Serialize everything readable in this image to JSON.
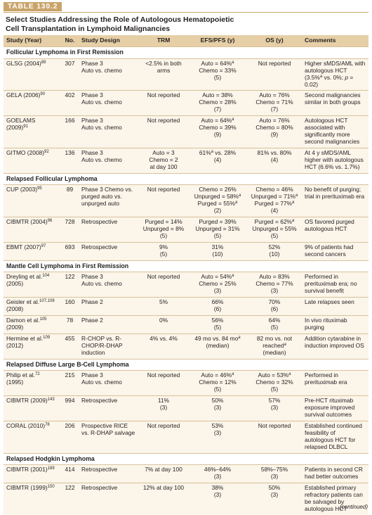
{
  "label": "TABLE 130.2",
  "title": "Select Studies Addressing the Role of Autologous Hematopoietic Cell Transplantation in Lymphoid Malignancies",
  "columns": [
    "Study (Year)",
    "No.",
    "Study Design",
    "TRM",
    "EFS/PFS (y)",
    "OS (y)",
    "Comments"
  ],
  "sections": [
    {
      "heading": "Follicular Lymphoma in First Remission",
      "rows": [
        [
          [
            [
              "GLSG (2004)",
              {
                "sup": "89"
              }
            ]
          ],
          [
            "307"
          ],
          [
            "Phase 3",
            "Auto vs. chemo"
          ],
          [
            "<2.5% in both arms"
          ],
          [
            [
              "Auto = 64%",
              {
                "sup": "a"
              }
            ],
            "Chemo = 33%",
            "(5)"
          ],
          [
            "Not reported"
          ],
          [
            [
              "Higher sMDS/AML with autologous HCT (3.5%",
              {
                "sup": "a"
              },
              " vs. 0%; ",
              {
                "i": "p"
              },
              " = 0.02)"
            ]
          ]
        ],
        [
          [
            [
              "GELA (2006)",
              {
                "sup": "90"
              }
            ]
          ],
          [
            "402"
          ],
          [
            "Phase 3",
            "Auto vs. chemo"
          ],
          [
            "Not reported"
          ],
          [
            "Auto = 38%",
            "Chemo = 28%",
            "(7)"
          ],
          [
            "Auto = 76%",
            "Chemo = 71%",
            "(7)"
          ],
          [
            "Second malignancies similar in both groups"
          ]
        ],
        [
          [
            [
              "GOELAMS (2009)",
              {
                "sup": "91"
              }
            ]
          ],
          [
            "166"
          ],
          [
            "Phase 3",
            "Auto vs. chemo"
          ],
          [
            "Not reported"
          ],
          [
            [
              "Auto = 64%",
              {
                "sup": "a"
              }
            ],
            "Chemo = 39%",
            "(9)"
          ],
          [
            "Auto = 76%",
            "Chemo = 80%",
            "(9)"
          ],
          [
            "Autologous HCT associated with significantly more second malignancies"
          ]
        ],
        [
          [
            [
              "GITMO (2008)",
              {
                "sup": "92"
              }
            ]
          ],
          [
            "136"
          ],
          [
            "Phase 3",
            "Auto vs. chemo"
          ],
          [
            "Auto = 3",
            "Chemo = 2",
            "at day 100"
          ],
          [
            [
              "61%",
              {
                "sup": "a"
              },
              " vs. 28%"
            ],
            "(4)"
          ],
          [
            "81% vs. 80%",
            "(4)"
          ],
          [
            "At 4 y sMDS/AML higher with autologous HCT (6.6% vs. 1.7%)"
          ]
        ]
      ]
    },
    {
      "heading": "Relapsed Follicular Lymphoma",
      "rows": [
        [
          [
            [
              "CUP (2003)",
              {
                "sup": "95"
              }
            ]
          ],
          [
            "89"
          ],
          [
            "Phase 3 Chemo vs. purged auto vs. unpurged auto"
          ],
          [
            "Not reported"
          ],
          [
            "Chemo = 26%",
            [
              "Unpurged = 58%",
              {
                "sup": "a"
              }
            ],
            [
              "Purged = 55%",
              {
                "sup": "a"
              }
            ],
            "(2)"
          ],
          [
            "Chemo = 46%",
            [
              "Unpurged = 71%",
              {
                "sup": "a"
              }
            ],
            [
              "Purged = 77%",
              {
                "sup": "a"
              }
            ],
            "(4)"
          ],
          [
            "No benefit of purging; trial in prerituximab era"
          ]
        ],
        [
          [
            [
              "CIBMTR (2004)",
              {
                "sup": "96"
              }
            ]
          ],
          [
            "728"
          ],
          [
            "Retrospective"
          ],
          [
            "Purged = 14%",
            "Unpurged = 8%",
            "(5)"
          ],
          [
            "Purged = 39%",
            "Unpurged = 31%",
            "(5)"
          ],
          [
            [
              "Purged = 62%",
              {
                "sup": "a"
              }
            ],
            "Unpurged = 55%",
            "(5)"
          ],
          [
            "OS favored purged autologous HCT"
          ]
        ],
        [
          [
            [
              "EBMT (2007)",
              {
                "sup": "97"
              }
            ]
          ],
          [
            "693"
          ],
          [
            "Retrospective"
          ],
          [
            "9%",
            "(5)"
          ],
          [
            "31%",
            "(10)"
          ],
          [
            "52%",
            "(10)"
          ],
          [
            "9% of patients had second cancers"
          ]
        ]
      ]
    },
    {
      "heading": "Mantle Cell Lymphoma in First Remission",
      "rows": [
        [
          [
            [
              "Dreyling et al.",
              {
                "sup": "104"
              }
            ],
            "(2005)"
          ],
          [
            "122"
          ],
          [
            "Phase 3",
            "Auto vs. chemo"
          ],
          [
            "Not reported"
          ],
          [
            [
              "Auto = 54%",
              {
                "sup": "a"
              }
            ],
            "Chemo = 25%",
            "(3)"
          ],
          [
            "Auto = 83%",
            "Chemo = 77%",
            "(3)"
          ],
          [
            "Performed in prerituximab era; no survival benefit"
          ]
        ],
        [
          [
            [
              "Geisler et al.",
              {
                "sup": "107,108"
              }
            ],
            "(2008)"
          ],
          [
            "160"
          ],
          [
            "Phase 2"
          ],
          [
            "5%"
          ],
          [
            "66%",
            "(6)"
          ],
          [
            "70%",
            "(6)"
          ],
          [
            "Late relapses seen"
          ]
        ],
        [
          [
            [
              "Damon et al.",
              {
                "sup": "105"
              }
            ],
            "(2009)"
          ],
          [
            "78"
          ],
          [
            "Phase 2"
          ],
          [
            "0%"
          ],
          [
            "56%",
            "(5)"
          ],
          [
            "64%",
            "(5)"
          ],
          [
            "In vivo rituximab purging"
          ]
        ],
        [
          [
            [
              "Hermine et al.",
              {
                "sup": "109"
              }
            ],
            "(2012)"
          ],
          [
            "455"
          ],
          [
            "R-CHOP vs. R-CHOP/R-DHAP induction"
          ],
          [
            "4% vs. 4%"
          ],
          [
            [
              "49 mo vs. 84 mo",
              {
                "sup": "a"
              }
            ],
            "(median)"
          ],
          [
            "82 mo vs. not",
            [
              "reached",
              {
                "sup": "a"
              }
            ],
            "(median)"
          ],
          [
            "Addition cytarabine in induction improved OS"
          ]
        ]
      ]
    },
    {
      "heading": "Relapsed Diffuse Large B-Cell Lymphoma",
      "rows": [
        [
          [
            [
              "Philip et al.",
              {
                "sup": "72"
              },
              " (1995)"
            ]
          ],
          [
            "215"
          ],
          [
            "Phase 3",
            "Auto vs. chemo"
          ],
          [
            "Not reported"
          ],
          [
            [
              "Auto = 46%",
              {
                "sup": "a"
              }
            ],
            "Chemo = 12%",
            "(5)"
          ],
          [
            [
              "Auto = 53%",
              {
                "sup": "a"
              }
            ],
            "Chemo = 32%",
            "(5)"
          ],
          [
            "Performed in prerituximab era"
          ]
        ],
        [
          [
            [
              "CIBMTR (2009)",
              {
                "sup": "143"
              }
            ]
          ],
          [
            "994"
          ],
          [
            "Retrospective"
          ],
          [
            "11%",
            "(3)"
          ],
          [
            "50%",
            "(3)"
          ],
          [
            "57%",
            "(3)"
          ],
          [
            "Pre-HCT rituximab exposure improved survival outcomes"
          ]
        ],
        [
          [
            [
              "CORAL (2010)",
              {
                "sup": "78"
              }
            ]
          ],
          [
            "206"
          ],
          [
            "Prospective RICE vs. R-DHAP salvage"
          ],
          [
            "Not reported"
          ],
          [
            "53%",
            "(3)"
          ],
          [
            "Not reported"
          ],
          [
            "Established continued feasibility of autologous HCT for relapsed DLBCL"
          ]
        ]
      ]
    },
    {
      "heading": "Relapsed Hodgkin Lymphoma",
      "rows": [
        [
          [
            [
              "CIBMTR (2001)",
              {
                "sup": "189"
              }
            ]
          ],
          [
            "414"
          ],
          [
            "Retrospective"
          ],
          [
            "7% at day 100"
          ],
          [
            "46%–64%",
            "(3)"
          ],
          [
            "58%–75%",
            "(3)"
          ],
          [
            "Patients in second CR had better outcomes"
          ]
        ],
        [
          [
            [
              "CIBMTR (1999)",
              {
                "sup": "150"
              }
            ]
          ],
          [
            "122"
          ],
          [
            "Retrospective"
          ],
          [
            "12% at day 100"
          ],
          [
            "38%",
            "(3)"
          ],
          [
            "50%",
            "(3)"
          ],
          [
            "Established primary refractory patients can be salvaged by autologous HCT"
          ]
        ]
      ]
    }
  ],
  "footer": "(continued)"
}
